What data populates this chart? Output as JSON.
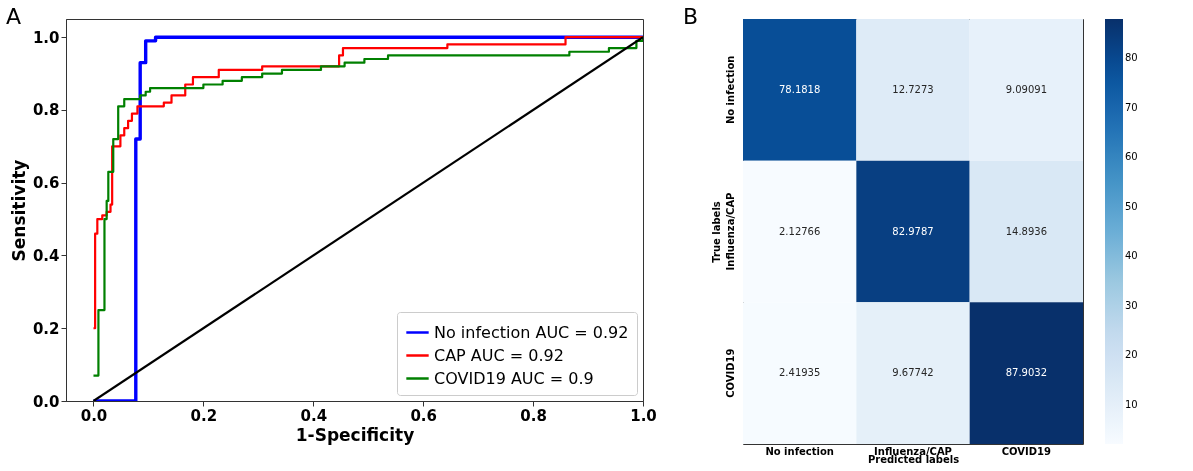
{
  "chart_data": [
    {
      "type": "step",
      "title": "A",
      "xlabel": "1-Specificity",
      "ylabel": "Sensitivity",
      "xlim": [
        -0.05,
        1.0
      ],
      "ylim": [
        0,
        1.05
      ],
      "xticks": [
        {
          "value": 0,
          "label": "0.0"
        },
        {
          "value": 0.2,
          "label": "0.2"
        },
        {
          "value": 0.4,
          "label": "0.4"
        },
        {
          "value": 0.6,
          "label": "0.6"
        },
        {
          "value": 0.8,
          "label": "0.8"
        },
        {
          "value": 1,
          "label": "1.0"
        }
      ],
      "yticks": [
        {
          "value": 0,
          "label": "0.0"
        },
        {
          "value": 0.2,
          "label": "0.2"
        },
        {
          "value": 0.4,
          "label": "0.4"
        },
        {
          "value": 0.6,
          "label": "0.6"
        },
        {
          "value": 0.8,
          "label": "0.8"
        },
        {
          "value": 1,
          "label": "1.0"
        }
      ],
      "legend": "bottom right",
      "grid": false,
      "series": [
        {
          "name": "No infection AUC = 0.92",
          "color": "#0000ff",
          "x": [
            0,
            0.077,
            0.085,
            0.095,
            0.113,
            1.0
          ],
          "values": [
            0,
            0.72,
            0.93,
            0.99,
            1.0,
            1.0
          ]
        },
        {
          "name": "CAP AUC = 0.92",
          "color": "#ff0000",
          "x": [
            0,
            0.003,
            0.007,
            0.016,
            0.024,
            0.031,
            0.034,
            0.049,
            0.056,
            0.063,
            0.07,
            0.08,
            0.128,
            0.142,
            0.167,
            0.181,
            0.228,
            0.307,
            0.447,
            0.454,
            0.644,
            0.859,
            1.0
          ],
          "values": [
            0.2,
            0.46,
            0.5,
            0.51,
            0.52,
            0.54,
            0.7,
            0.73,
            0.75,
            0.77,
            0.79,
            0.81,
            0.82,
            0.84,
            0.87,
            0.89,
            0.91,
            0.92,
            0.95,
            0.97,
            0.98,
            1.0,
            1.0
          ]
        },
        {
          "name": "COVID19 AUC = 0.9",
          "color": "#008000",
          "x": [
            0,
            0.009,
            0.02,
            0.024,
            0.027,
            0.036,
            0.045,
            0.056,
            0.085,
            0.095,
            0.103,
            0.2,
            0.235,
            0.27,
            0.307,
            0.343,
            0.414,
            0.457,
            0.493,
            0.536,
            0.866,
            0.938,
            0.988,
            1.0
          ],
          "values": [
            0.07,
            0.25,
            0.5,
            0.55,
            0.63,
            0.72,
            0.81,
            0.83,
            0.84,
            0.85,
            0.86,
            0.87,
            0.88,
            0.89,
            0.9,
            0.91,
            0.92,
            0.93,
            0.94,
            0.95,
            0.96,
            0.97,
            0.99,
            1.0
          ]
        },
        {
          "type": "line",
          "color": "#000000",
          "x": [
            0,
            1
          ],
          "values": [
            0,
            1
          ]
        }
      ]
    },
    {
      "type": "heatmap",
      "title": "B",
      "xlabel": "Predicted labels",
      "ylabel": "True labels",
      "categories": [
        "No infection",
        "Influenza/CAP",
        "COVID19"
      ],
      "y_categories": [
        "No infection",
        "Influenza/CAP",
        "COVID19"
      ],
      "cells": [
        [
          78.1818,
          12.7273,
          9.09091
        ],
        [
          2.12766,
          82.9787,
          14.8936
        ],
        [
          2.41935,
          9.67742,
          87.9032
        ]
      ],
      "data_labels": true,
      "clim": [
        2.12766,
        87.9032
      ],
      "cticks": [
        10,
        20,
        30,
        40,
        50,
        60,
        70,
        80
      ]
    }
  ]
}
